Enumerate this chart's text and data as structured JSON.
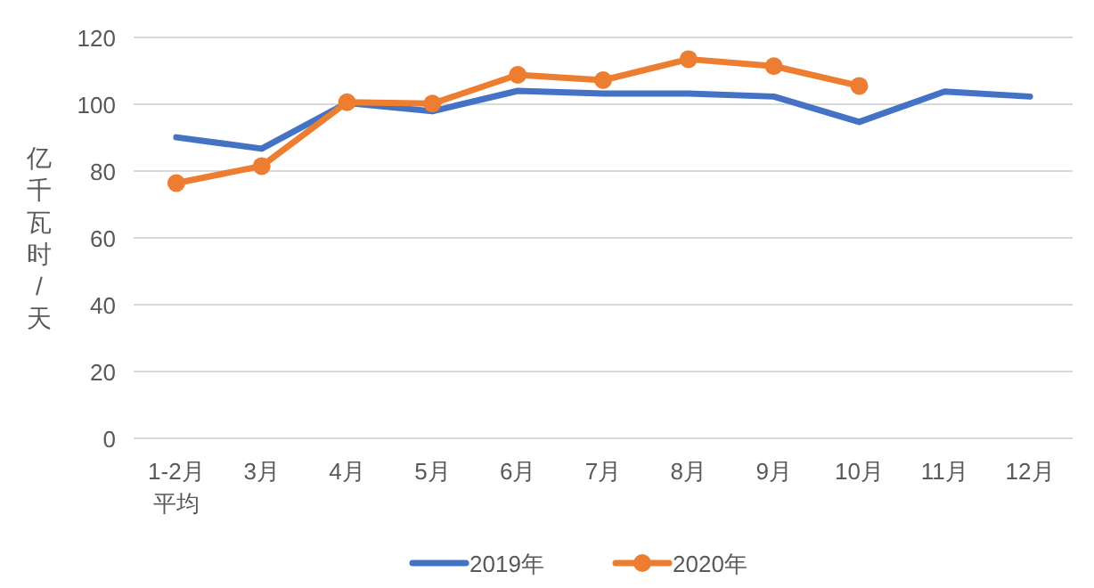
{
  "chart_data": {
    "type": "line",
    "ylabel": "亿千瓦时/天",
    "categories": [
      "1-2月平均",
      "3月",
      "4月",
      "5月",
      "6月",
      "7月",
      "8月",
      "9月",
      "10月",
      "11月",
      "12月"
    ],
    "series": [
      {
        "name": "2019年",
        "color": "#4472c4",
        "marker": "none",
        "values": [
          90.1,
          86.7,
          100.4,
          97.9,
          104,
          103.2,
          103.2,
          102.3,
          94.7,
          103.8,
          102.3
        ]
      },
      {
        "name": "2020年",
        "color": "#ed7d31",
        "marker": "circle",
        "values": [
          76.4,
          81.5,
          100.6,
          100.2,
          108.8,
          107.2,
          113.5,
          111.4,
          105.5,
          null,
          null
        ]
      }
    ],
    "ylim": [
      0,
      120
    ],
    "yticks": [
      0,
      20,
      40,
      60,
      80,
      100,
      120
    ],
    "grid": "y",
    "legend": "bottom",
    "line_style": "solid"
  }
}
